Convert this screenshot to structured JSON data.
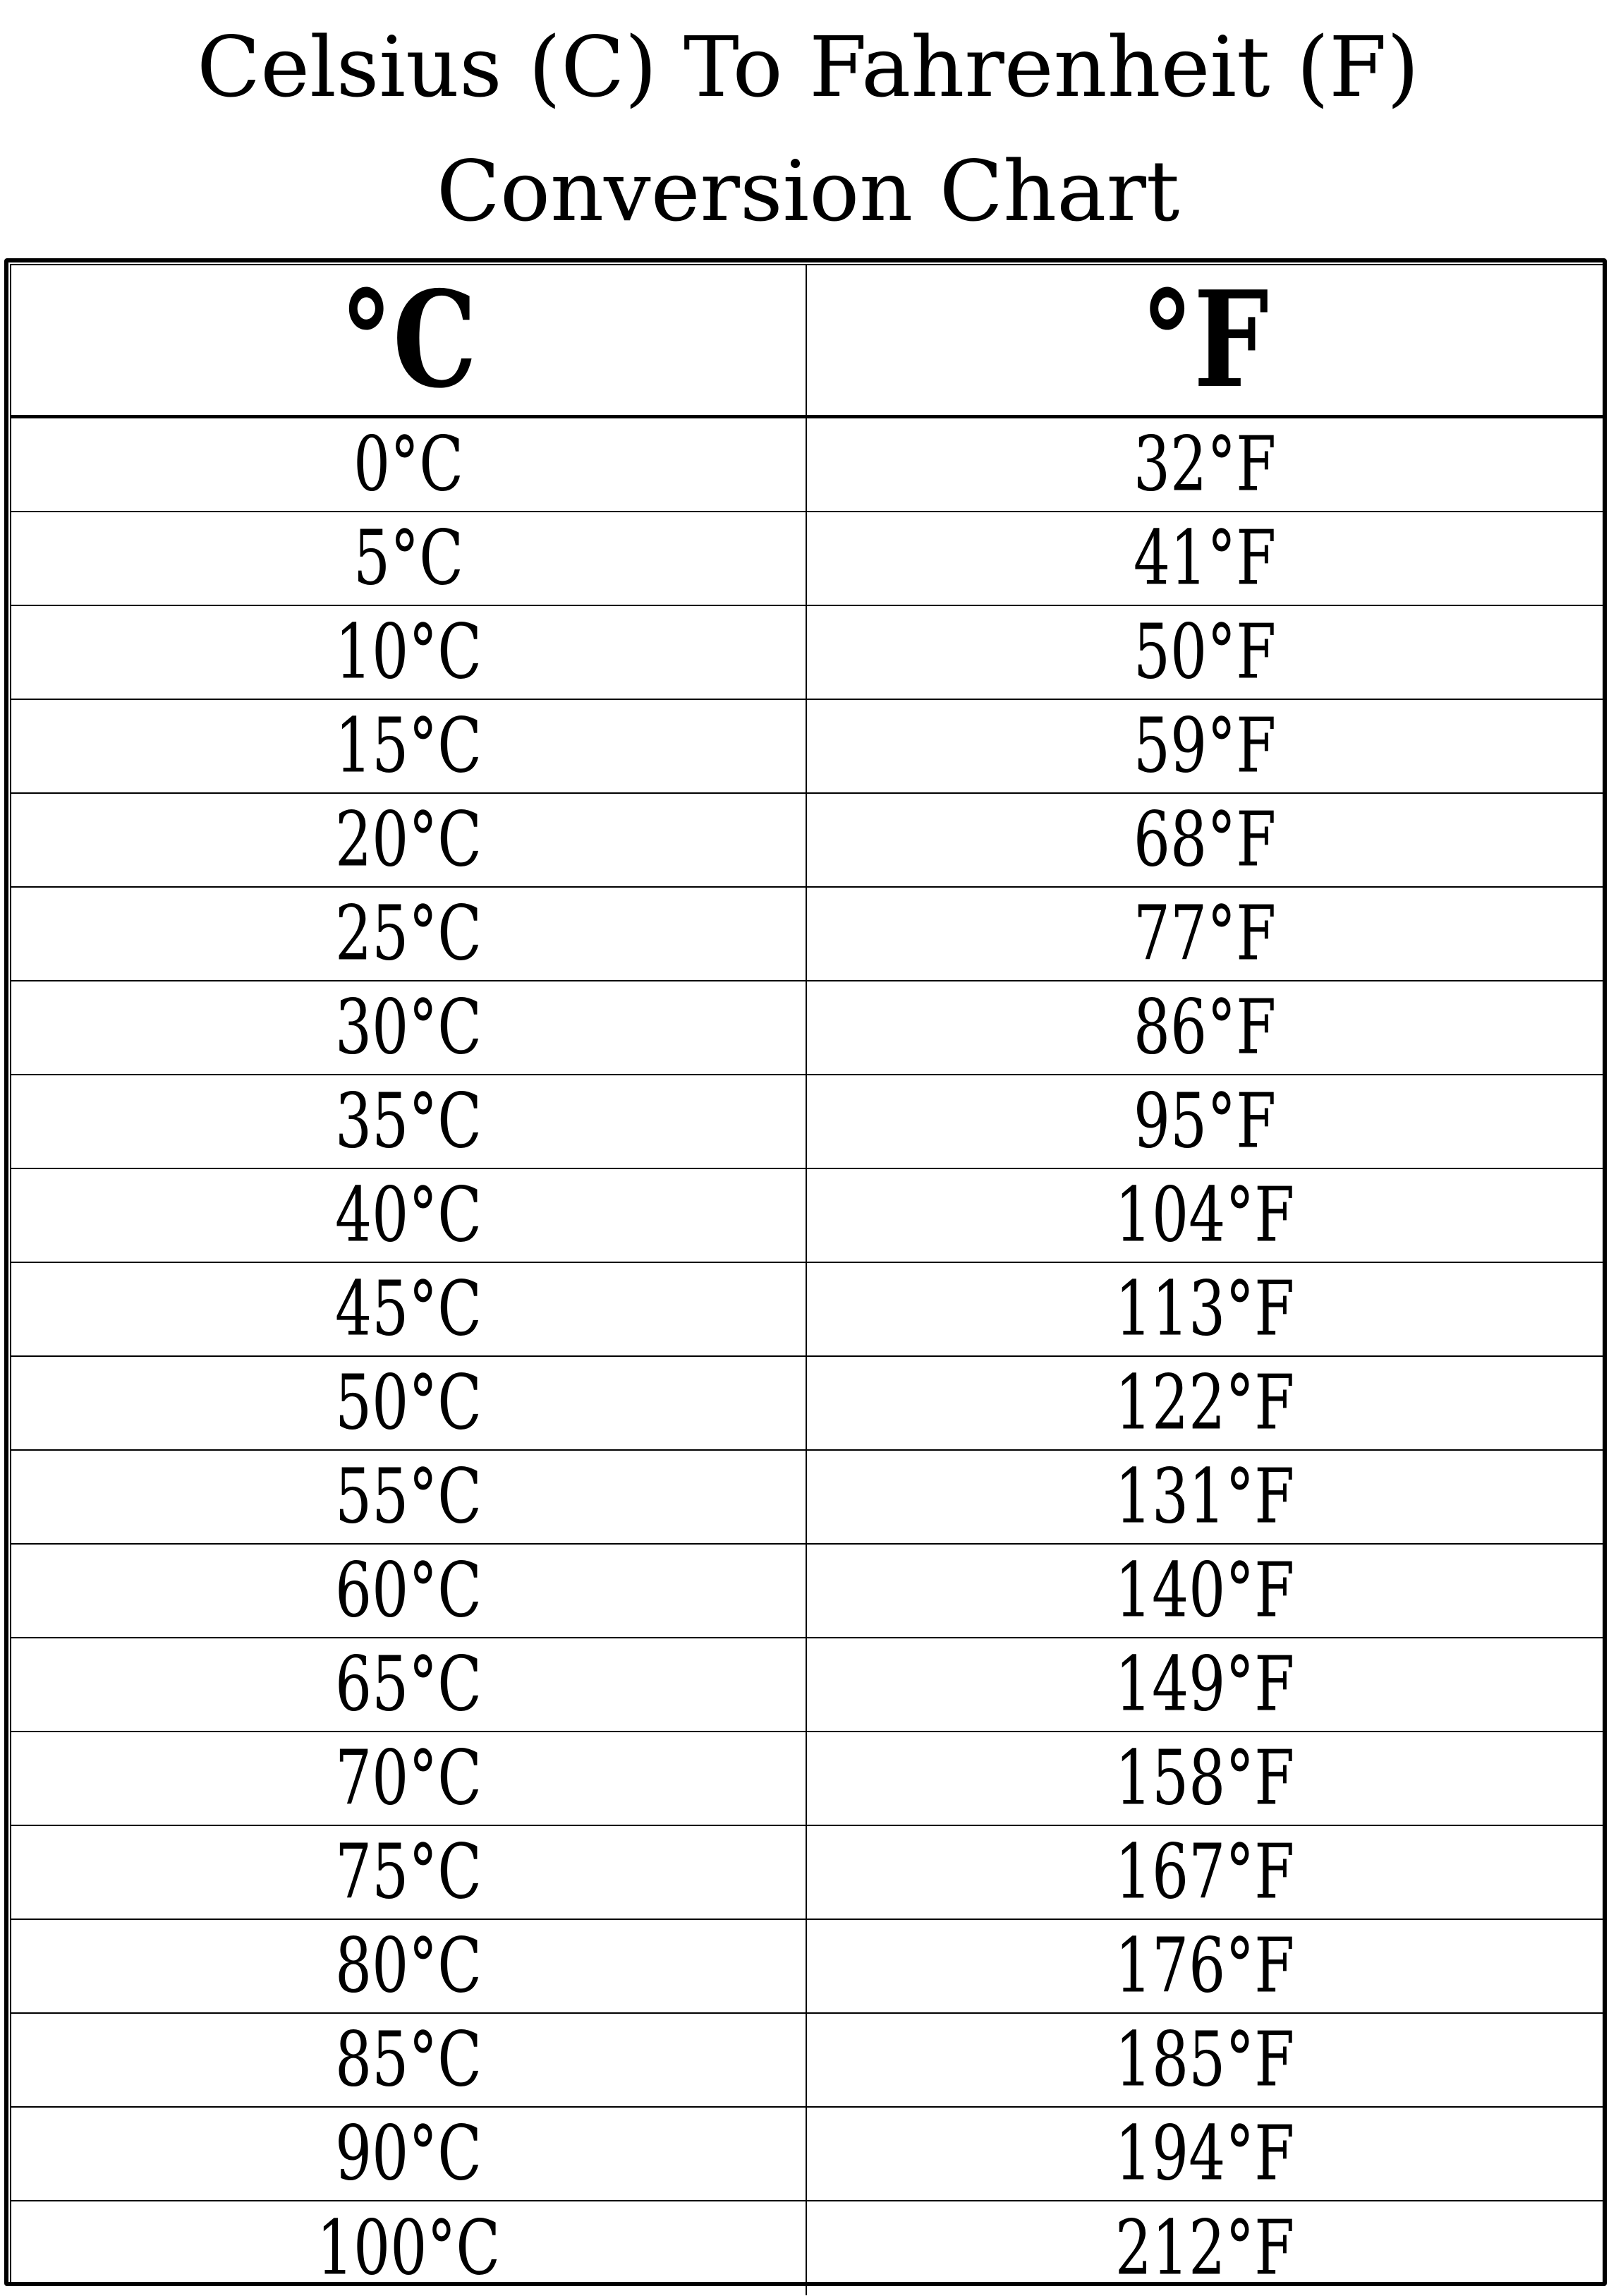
{
  "title": {
    "line1": "Celsius (C) To Fahrenheit (F)",
    "line2": "Conversion Chart"
  },
  "table": {
    "headers": [
      "°C",
      "°F"
    ],
    "rows": [
      [
        "0°C",
        "32°F"
      ],
      [
        "5°C",
        "41°F"
      ],
      [
        "10°C",
        "50°F"
      ],
      [
        "15°C",
        "59°F"
      ],
      [
        "20°C",
        "68°F"
      ],
      [
        "25°C",
        "77°F"
      ],
      [
        "30°C",
        "86°F"
      ],
      [
        "35°C",
        "95°F"
      ],
      [
        "40°C",
        "104°F"
      ],
      [
        "45°C",
        "113°F"
      ],
      [
        "50°C",
        "122°F"
      ],
      [
        "55°C",
        "131°F"
      ],
      [
        "60°C",
        "140°F"
      ],
      [
        "65°C",
        "149°F"
      ],
      [
        "70°C",
        "158°F"
      ],
      [
        "75°C",
        "167°F"
      ],
      [
        "80°C",
        "176°F"
      ],
      [
        "85°C",
        "185°F"
      ],
      [
        "90°C",
        "194°F"
      ],
      [
        "100°C",
        "212°F"
      ]
    ]
  }
}
